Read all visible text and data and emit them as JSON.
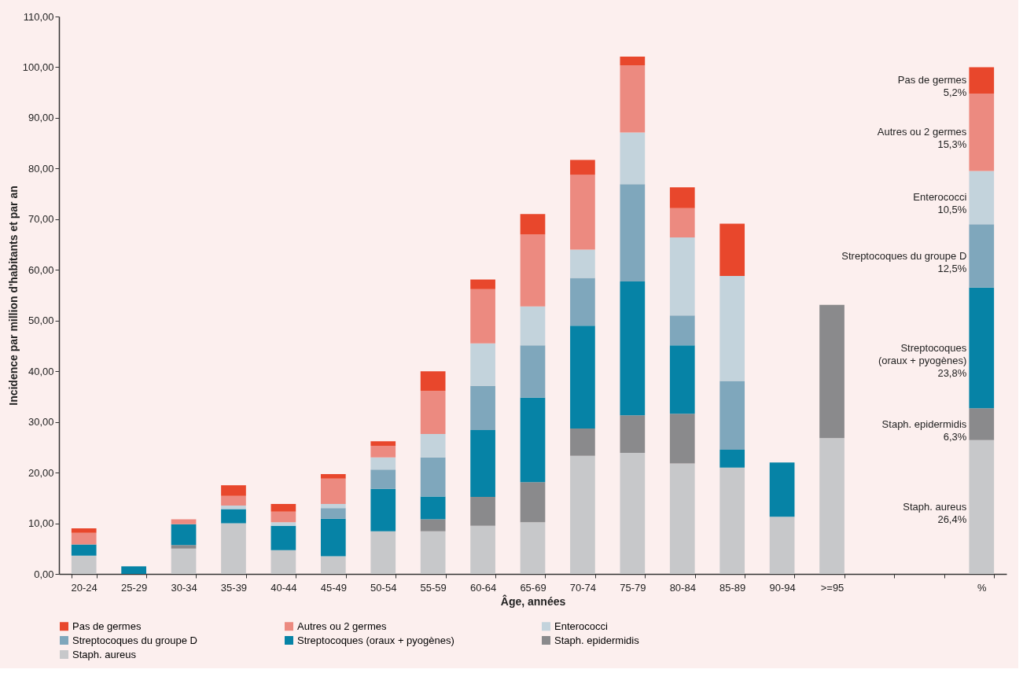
{
  "chart_data": {
    "type": "bar",
    "stacked": true,
    "xlabel": "Âge, années",
    "ylabel": "Incidence par million d'habitants et par an",
    "categories": [
      "20-24",
      "25-29",
      "30-34",
      "35-39",
      "40-44",
      "45-49",
      "50-54",
      "55-59",
      "60-64",
      "65-69",
      "70-74",
      "75-79",
      "80-84",
      "85-89",
      "90-94",
      ">=95",
      null,
      null,
      "%"
    ],
    "series": [
      {
        "name": "Staph. aureus",
        "color": "#c7c8ca",
        "values": [
          3.6,
          0,
          5.0,
          10.0,
          4.7,
          3.5,
          8.4,
          8.4,
          9.5,
          10.2,
          23.3,
          23.9,
          21.8,
          21.0,
          11.3,
          26.8,
          null,
          null,
          26.4
        ]
      },
      {
        "name": "Staph. epidermidis",
        "color": "#8a8a8c",
        "values": [
          0,
          0,
          0.7,
          0,
          0,
          0,
          0,
          2.4,
          5.7,
          7.9,
          5.4,
          7.4,
          9.8,
          0,
          0,
          26.3,
          null,
          null,
          6.3
        ]
      },
      {
        "name": "Streptocoques (oraux + pyogènes)",
        "color": "#0683a6",
        "values": [
          2.2,
          1.5,
          4.1,
          2.8,
          4.8,
          7.4,
          8.4,
          4.5,
          13.2,
          16.7,
          20.3,
          26.4,
          13.5,
          3.5,
          10.7,
          0,
          null,
          null,
          23.8
        ]
      },
      {
        "name": "Streptocoques du groupe D",
        "color": "#7fa7bc",
        "values": [
          0,
          0,
          0,
          0,
          0,
          2.1,
          3.8,
          7.7,
          8.7,
          10.3,
          9.4,
          19.2,
          5.9,
          13.6,
          0,
          0,
          null,
          null,
          12.5
        ]
      },
      {
        "name": "Enterococci",
        "color": "#c3d3dc",
        "values": [
          0,
          0,
          0,
          0.7,
          0.7,
          0.8,
          2.4,
          4.6,
          8.4,
          7.7,
          5.6,
          10.2,
          15.4,
          20.7,
          0,
          0,
          null,
          null,
          10.5
        ]
      },
      {
        "name": "Autres ou 2 germes",
        "color": "#ec8a80",
        "values": [
          2.3,
          0,
          1.0,
          1.9,
          2.1,
          5.0,
          2.3,
          8.5,
          10.7,
          14.2,
          14.8,
          13.3,
          5.8,
          0,
          0,
          0,
          null,
          null,
          15.3
        ]
      },
      {
        "name": "Pas de germes",
        "color": "#e8472c",
        "values": [
          0.9,
          0,
          0,
          2.1,
          1.5,
          0.9,
          0.9,
          3.9,
          1.9,
          4.0,
          2.9,
          1.7,
          4.1,
          10.3,
          0,
          0,
          null,
          null,
          5.2
        ]
      }
    ],
    "annotations": [
      "Pas de germes\n5,2%",
      "Autres ou 2 germes\n15,3%",
      "Enterococci\n10,5%",
      "Streptocoques du groupe D\n12,5%",
      "Streptocoques\n(oraux + pyogènes)\n23,8%",
      "Staph. epidermidis\n6,3%",
      "Staph. aureus\n26,4%"
    ],
    "ylim": [
      0,
      110
    ],
    "yticks": [
      {
        "value": 0,
        "label": "0,00"
      },
      {
        "value": 10,
        "label": "10,00"
      },
      {
        "value": 20,
        "label": "20,00"
      },
      {
        "value": 30,
        "label": "30,00"
      },
      {
        "value": 40,
        "label": "40,00"
      },
      {
        "value": 50,
        "label": "50,00"
      },
      {
        "value": 60,
        "label": "60,00"
      },
      {
        "value": 70,
        "label": "70,00"
      },
      {
        "value": 80,
        "label": "80,00"
      },
      {
        "value": 90,
        "label": "90,00"
      },
      {
        "value": 100,
        "label": "100,00"
      },
      {
        "value": 110,
        "label": "110,00"
      }
    ],
    "grid": false,
    "legend": "bottom"
  }
}
